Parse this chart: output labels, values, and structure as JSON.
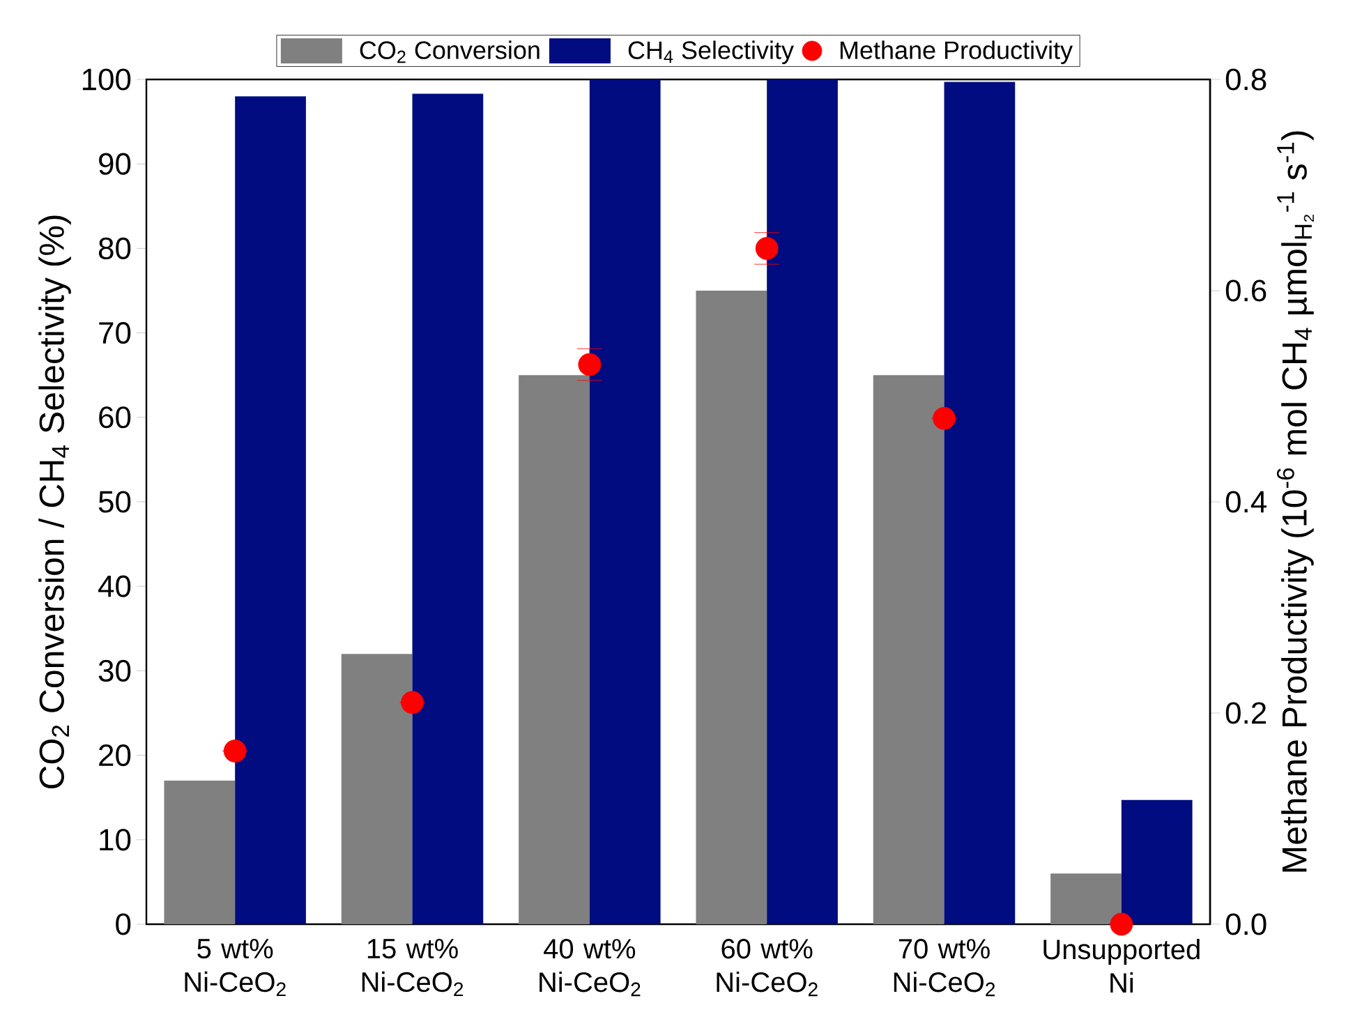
{
  "chart_data": {
    "type": "bar",
    "categories": [
      "5 wt% Ni-CeO$_{2}$",
      "15 wt% Ni-CeO$_{2}$",
      "40 wt% Ni-CeO$_{2}$",
      "60 wt% Ni-CeO$_{2}$",
      "70 wt% Ni-CeO$_{2}$",
      "Unsupported Ni"
    ],
    "ylabel": "CO$_{2}$ Conversion / CH$_{4}$ Selectivity (%)",
    "y2label": "Methane Productivity (10$^{-6}$ mol CH$_{4}$ µmol$_{H₂}$$^{-1}$ s$^{-1}$)",
    "series": [
      {
        "name": "CO$_{2}$ Conversion",
        "color": "#808080",
        "values": [
          17,
          32,
          65,
          75,
          65,
          6
        ]
      },
      {
        "name": "CH$_{4}$ Selectivity",
        "color": "#000c80",
        "values": [
          98,
          98.3,
          100,
          100,
          99.7,
          14.7
        ]
      },
      {
        "name": "Methane Productivity",
        "type": "scatter",
        "axis": "y2",
        "marker": "circle",
        "color": "#ff0000",
        "values": [
          0.164,
          0.21,
          0.53,
          0.64,
          0.479,
          0.0
        ],
        "errors": [
          null,
          null,
          0.015,
          0.015,
          null,
          null
        ]
      }
    ],
    "ylim": [
      0,
      100
    ],
    "yticks": [
      0,
      10,
      20,
      30,
      40,
      50,
      60,
      70,
      80,
      90,
      100
    ],
    "y2lim": [
      0,
      0.8
    ],
    "y2ticks": [
      {
        "value": 0,
        "label": "0.0"
      },
      0.2,
      0.4,
      0.6,
      0.8
    ],
    "legend": "top"
  }
}
